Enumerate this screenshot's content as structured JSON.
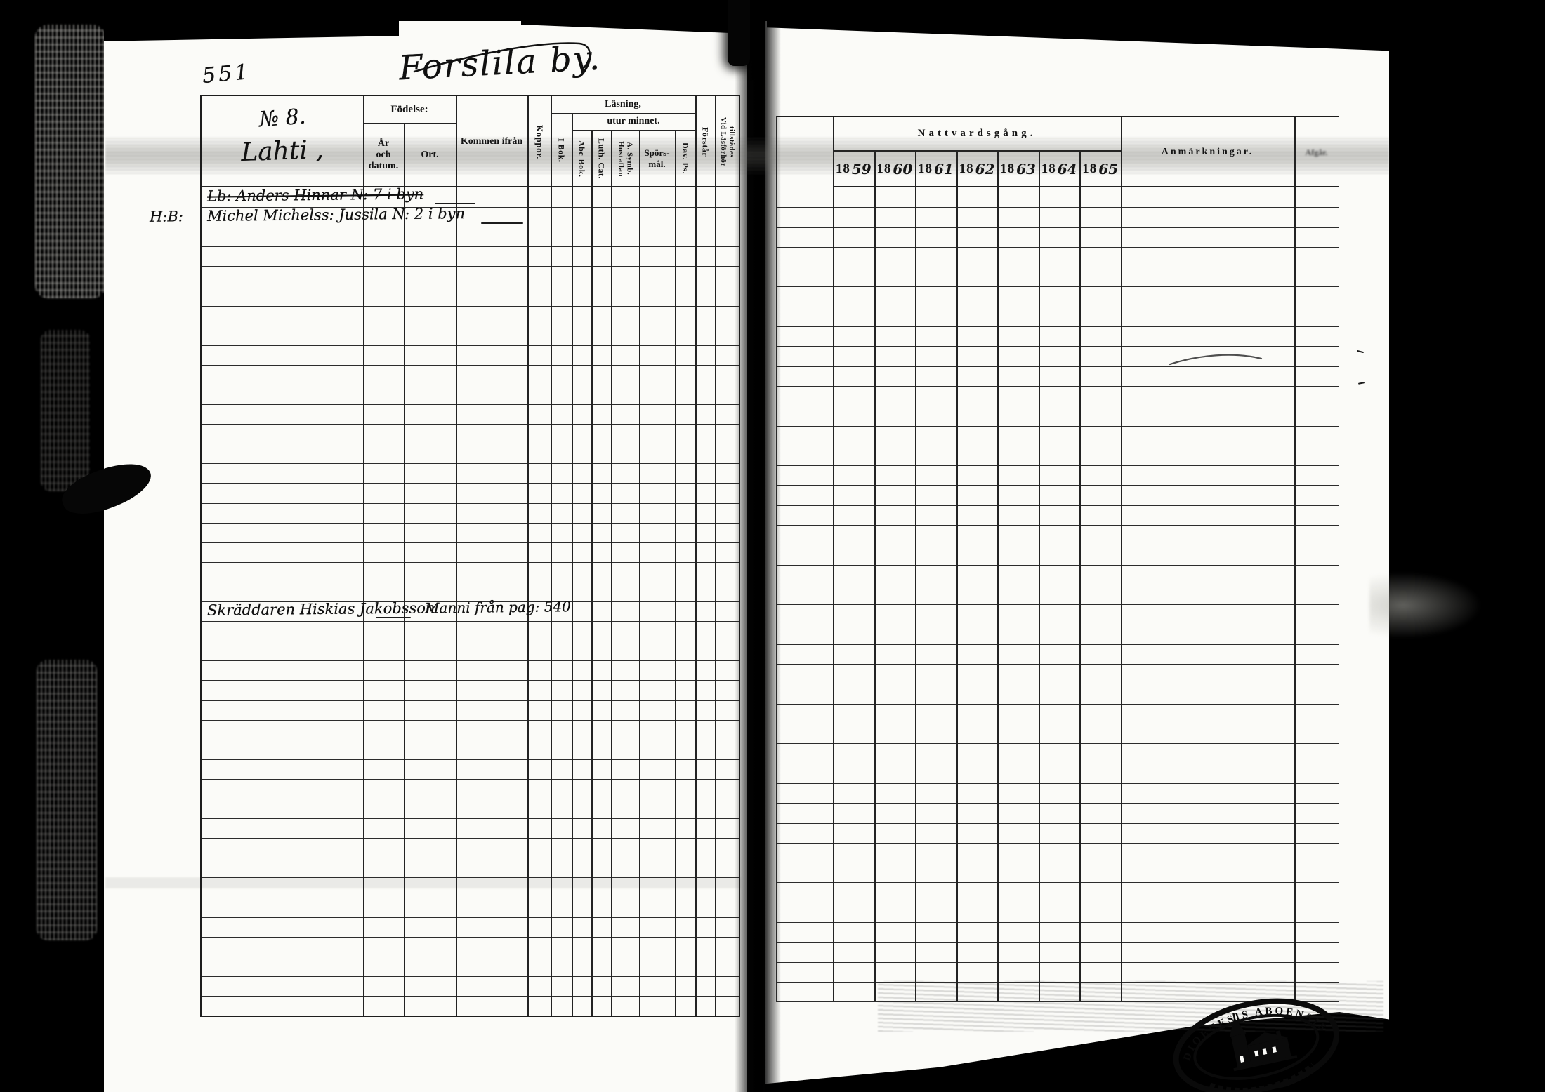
{
  "page": {
    "page_number": "551",
    "title": "Forslila by.",
    "stamp_text": "DIOECESIS ABOENSIS"
  },
  "left_table": {
    "household": {
      "number": "№ 8.",
      "name": "Lahti ,"
    },
    "headers": {
      "fodelse": "Födelse:",
      "ar_och_datum": "År\noch datum.",
      "ort": "Ort.",
      "kommen_ifran": "Kommen ifrån",
      "koppor": "Koppor.",
      "lasning": "Läsning,",
      "utur_minnet": "utur minnet.",
      "i_bok": "I Bok.",
      "abc_bok": "Abc-Bok.",
      "luth_cat": "Luth. Cat.",
      "hustaflan": "Hustaflan\nA. Symb.",
      "sporsmal": "Spörs-\nmål.",
      "dav_ps": "Dav. Ps.",
      "forstar": "Förstår",
      "vid_lasforhor": "Vid Läsförhör\ntillstädes"
    },
    "entries": [
      {
        "row": 0,
        "text": "Lb: Anders Hinnar N: 7 i byn",
        "struck": true
      },
      {
        "row": 1,
        "prefix": "H:B:",
        "text": "Michel Michelss: Jussila N: 2 i byn",
        "struck": false
      },
      {
        "row": 21,
        "text": "Skräddaren Hiskias Jakobsson",
        "struck": false,
        "note": "Manni från pag: 540"
      }
    ]
  },
  "right_table": {
    "headers": {
      "nattvardsgang": "Nattvardsgång.",
      "years": [
        "1859",
        "1860",
        "1861",
        "1862",
        "1863",
        "1864",
        "1865"
      ],
      "anmarkningar": "Anmärkningar.",
      "afgar": "Afgår."
    }
  }
}
